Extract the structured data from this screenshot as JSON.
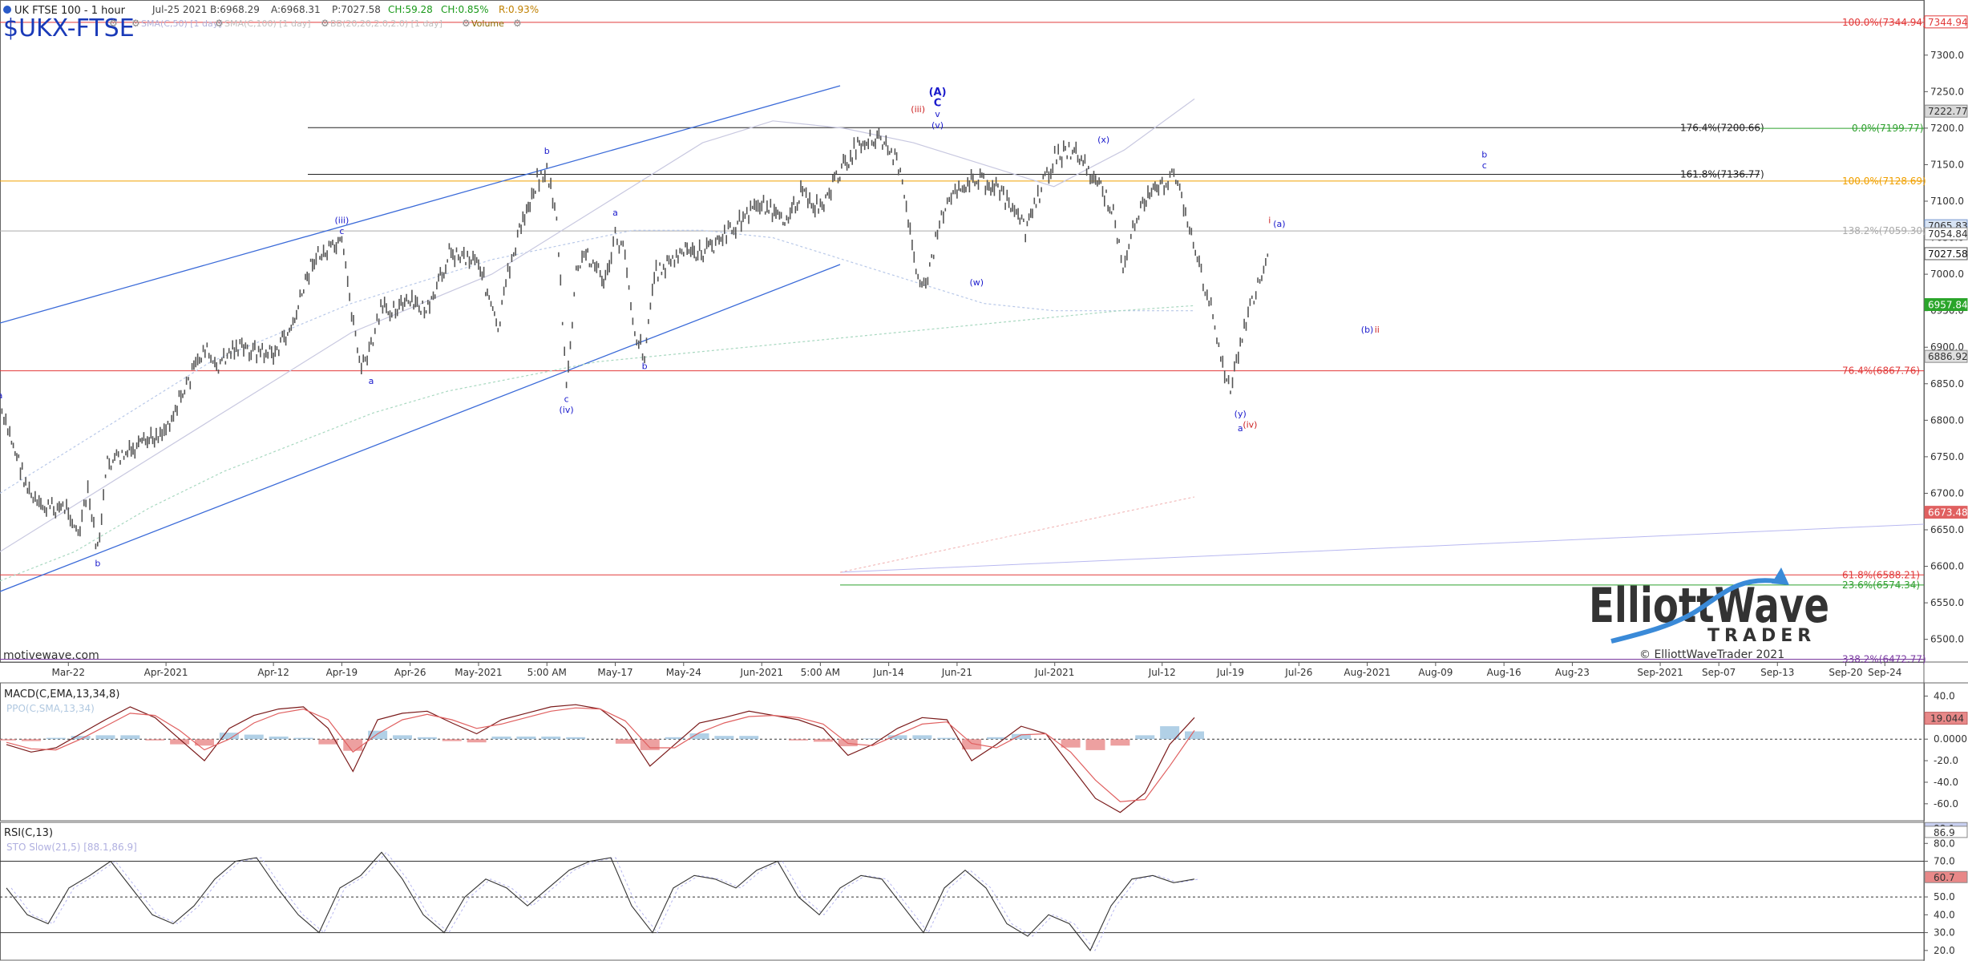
{
  "header": {
    "symbol_line": "UK FTSE 100 - 1 hour",
    "date": "Jul-25 2021",
    "bid": "B:6968.29",
    "ask": "A:6968.31",
    "price": "P:7027.58",
    "change": "CH:59.28",
    "change_pct": "CH:0.85%",
    "range": "R:0.93%",
    "ticker": "$UKX-FTSE",
    "study_sma50": "SMA(C,50) [1 day]",
    "study_sma100": "SMA(C,100) [1 day]",
    "study_bb": "BB(20,20,2.0,2.0) [1 day]",
    "study_volume": "Volume",
    "watermark": "motivewave.com"
  },
  "colors": {
    "price_bars": "#555555",
    "wave_blue": "#1a1acc",
    "wave_red": "#cc2222",
    "fib_red": "#e23a3a",
    "fib_green": "#2ea02e",
    "fib_orange": "#f0a000",
    "fib_black": "#222222",
    "fib_purple": "#7a3aa0",
    "trend_blue": "#3a6ad8",
    "macd": "#7a1a1a",
    "signal": "#e06060",
    "rsi": "#333333",
    "logo_blue": "#3a8ad8"
  },
  "chart_data": [
    {
      "type": "line",
      "title": "UK FTSE 100 - 1 hour",
      "ylim": [
        6470,
        7370
      ],
      "y_ticks": [
        6500,
        6550,
        6600,
        6650,
        6700,
        6750,
        6800,
        6850,
        6900,
        6950,
        7000,
        7050,
        7100,
        7150,
        7200,
        7250,
        7300
      ],
      "x_ticks": [
        "Mar-22",
        "Apr-2021",
        "Apr-12",
        "Apr-19",
        "Apr-26",
        "May-2021",
        "5:00 AM",
        "May-17",
        "May-24",
        "Jun-2021",
        "5:00 AM",
        "Jun-14",
        "Jun-21",
        "Jul-2021",
        "Jul-12",
        "Jul-19",
        "Jul-26",
        "Aug-2021",
        "Aug-09",
        "Aug-16",
        "Aug-23",
        "Sep-2021",
        "Sep-07",
        "Sep-13",
        "Sep-20",
        "Sep-24"
      ],
      "x_dates": [
        "2021-03-22",
        "2021-04-01",
        "2021-04-12",
        "2021-04-19",
        "2021-04-26",
        "2021-05-03",
        "2021-05-10",
        "2021-05-17",
        "2021-05-24",
        "2021-06-01",
        "2021-06-07",
        "2021-06-14",
        "2021-06-21",
        "2021-07-01",
        "2021-07-12",
        "2021-07-19",
        "2021-07-26",
        "2021-08-02",
        "2021-08-09",
        "2021-08-16",
        "2021-08-23",
        "2021-09-01",
        "2021-09-07",
        "2021-09-13",
        "2021-09-20",
        "2021-09-24"
      ],
      "series": [
        {
          "dates": [
            "2021-03-15",
            "2021-03-16",
            "2021-03-18",
            "2021-03-19",
            "2021-03-22",
            "2021-03-23",
            "2021-03-24",
            "2021-03-25",
            "2021-03-26",
            "2021-03-29",
            "2021-03-31",
            "2021-04-01",
            "2021-04-05",
            "2021-04-06",
            "2021-04-08",
            "2021-04-12",
            "2021-04-14",
            "2021-04-16",
            "2021-04-19",
            "2021-04-20",
            "2021-04-21",
            "2021-04-22",
            "2021-04-23",
            "2021-04-26",
            "2021-04-28",
            "2021-04-30",
            "2021-05-03",
            "2021-05-05",
            "2021-05-06",
            "2021-05-07",
            "2021-05-09",
            "2021-05-10",
            "2021-05-11",
            "2021-05-12",
            "2021-05-13",
            "2021-05-14",
            "2021-05-16",
            "2021-05-17",
            "2021-05-18",
            "2021-05-19",
            "2021-05-20",
            "2021-05-21",
            "2021-05-24",
            "2021-05-26",
            "2021-05-28",
            "2021-06-01",
            "2021-06-03",
            "2021-06-05",
            "2021-06-07",
            "2021-06-09",
            "2021-06-11",
            "2021-06-13",
            "2021-06-15",
            "2021-06-16",
            "2021-06-17",
            "2021-06-18",
            "2021-06-19",
            "2021-06-20",
            "2021-06-21",
            "2021-06-23",
            "2021-06-25",
            "2021-06-28",
            "2021-06-30",
            "2021-07-01",
            "2021-07-03",
            "2021-07-05",
            "2021-07-07",
            "2021-07-08",
            "2021-07-09",
            "2021-07-10",
            "2021-07-12",
            "2021-07-13",
            "2021-07-14",
            "2021-07-15",
            "2021-07-16",
            "2021-07-17",
            "2021-07-18",
            "2021-07-19",
            "2021-07-20",
            "2021-07-21",
            "2021-07-22",
            "2021-07-23"
          ],
          "values": [
            6810,
            6780,
            6700,
            6680,
            6680,
            6640,
            6700,
            6620,
            6740,
            6760,
            6780,
            6790,
            6900,
            6870,
            6900,
            6890,
            6930,
            7020,
            7040,
            6950,
            6870,
            6900,
            6950,
            6960,
            6950,
            7030,
            7020,
            6920,
            7000,
            7050,
            7130,
            7140,
            7080,
            6840,
            7000,
            7030,
            6990,
            7050,
            7030,
            6920,
            6890,
            7000,
            7030,
            7030,
            7050,
            7100,
            7070,
            7110,
            7090,
            7140,
            7180,
            7190,
            7150,
            7070,
            7000,
            6990,
            7060,
            7100,
            7120,
            7130,
            7120,
            7060,
            7130,
            7160,
            7170,
            7130,
            7090,
            7000,
            7060,
            7100,
            7120,
            7140,
            7110,
            7050,
            7000,
            6960,
            6880,
            6840,
            6900,
            6960,
            6990,
            7027.58
          ]
        },
        {
          "name": "SMA(C,50) [1 day]",
          "values": [
            6700,
            6760,
            6820,
            6880,
            6920,
            6960,
            6990,
            7020,
            7040,
            7060,
            7060,
            7050,
            7020,
            6990,
            6960,
            6950,
            6950,
            6950
          ]
        },
        {
          "name": "SMA(C,100) [1 day]",
          "values": [
            6580,
            6620,
            6680,
            6730,
            6770,
            6810,
            6840,
            6860,
            6880,
            6890,
            6900,
            6910,
            6920,
            6930,
            6940,
            6950,
            6957
          ]
        },
        {
          "name": "BB(20,20,2.0,2.0) [1 day]",
          "values": [
            6620,
            6680,
            6740,
            6800,
            6860,
            6920,
            6960,
            7000,
            7060,
            7120,
            7180,
            7210,
            7200,
            7180,
            7150,
            7120,
            7170,
            7240
          ]
        }
      ],
      "price_labels": [
        "7344.94",
        "7222.77",
        "7065.83",
        "7054.84",
        "7027.58",
        "6957.84",
        "6886.92",
        "6673.48"
      ],
      "fib_levels": [
        {
          "label": "100.0%(7344.94)",
          "value": 7344.94
        },
        {
          "label": "176.4%(7200.66)",
          "value": 7200.66
        },
        {
          "label": "0.0%(7199.77)",
          "value": 7199.77
        },
        {
          "label": "161.8%(7136.77)",
          "value": 7136.77
        },
        {
          "label": "100.0%(7128.69)",
          "value": 7128.69
        },
        {
          "label": "138.2%(7059.30)",
          "value": 7059.3
        },
        {
          "label": "76.4%(6867.76)",
          "value": 6867.76
        },
        {
          "label": "61.8%(6588.21)",
          "value": 6588.21
        },
        {
          "label": "23.6%(6574.34)",
          "value": 6574.34
        },
        {
          "label": "338.2%(6472.77)",
          "value": 6472.77
        }
      ],
      "wave_labels": [
        {
          "text": "a",
          "date": "2021-03-15",
          "value": 6830
        },
        {
          "text": "b",
          "date": "2021-03-25",
          "value": 6600
        },
        {
          "text": "(iii)",
          "date": "2021-04-19",
          "value": 7070
        },
        {
          "text": "c",
          "date": "2021-04-19",
          "value": 7055
        },
        {
          "text": "a",
          "date": "2021-04-22",
          "value": 6850
        },
        {
          "text": "b",
          "date": "2021-05-10",
          "value": 7165
        },
        {
          "text": "c",
          "date": "2021-05-12",
          "value": 6825
        },
        {
          "text": "(iv)",
          "date": "2021-05-12",
          "value": 6810
        },
        {
          "text": "a",
          "date": "2021-05-17",
          "value": 7080
        },
        {
          "text": "b",
          "date": "2021-05-20",
          "value": 6870
        },
        {
          "text": "(A)",
          "date": "2021-06-19",
          "value": 7245
        },
        {
          "text": "C",
          "date": "2021-06-19",
          "value": 7230
        },
        {
          "text": "(iii)",
          "date": "2021-06-17",
          "value": 7222
        },
        {
          "text": "v",
          "date": "2021-06-19",
          "value": 7215
        },
        {
          "text": "(v)",
          "date": "2021-06-19",
          "value": 7200
        },
        {
          "text": "(w)",
          "date": "2021-06-23",
          "value": 6985
        },
        {
          "text": "(x)",
          "date": "2021-07-06",
          "value": 7180
        },
        {
          "text": "(y)",
          "date": "2021-07-20",
          "value": 6805
        },
        {
          "text": "a",
          "date": "2021-07-20",
          "value": 6785
        },
        {
          "text": "(iv)",
          "date": "2021-07-21",
          "value": 6790
        },
        {
          "text": "i",
          "date": "2021-07-23",
          "value": 7070
        },
        {
          "text": "(a)",
          "date": "2021-07-24",
          "value": 7065
        },
        {
          "text": "(b)",
          "date": "2021-08-02",
          "value": 6920
        },
        {
          "text": "ii",
          "date": "2021-08-03",
          "value": 6920
        },
        {
          "text": "b",
          "date": "2021-08-14",
          "value": 7160
        },
        {
          "text": "c",
          "date": "2021-08-14",
          "value": 7145
        }
      ]
    },
    {
      "type": "line",
      "title": "MACD(C,EMA,13,34,8)",
      "subtitle": "PPO(C,SMA,13,34)",
      "ylim": [
        -75,
        50
      ],
      "y_ticks": [
        40.0,
        20.0,
        0.0,
        -20.0,
        -40.0,
        -60.0
      ],
      "y_tick_labels": [
        "40.0",
        "20.0",
        "0.0000",
        "-20.0",
        "-40.0",
        "-60.0"
      ],
      "value_label": "19.044",
      "series": [
        {
          "name": "MACD",
          "values": [
            -5,
            -12,
            -8,
            5,
            18,
            30,
            20,
            0,
            -20,
            10,
            22,
            28,
            30,
            10,
            -30,
            18,
            24,
            26,
            15,
            5,
            18,
            24,
            30,
            32,
            28,
            10,
            -25,
            -5,
            15,
            20,
            26,
            22,
            18,
            10,
            -15,
            -5,
            10,
            20,
            18,
            -20,
            -5,
            12,
            5,
            -25,
            -55,
            -68,
            -50,
            -5,
            20
          ]
        },
        {
          "name": "Signal",
          "values": [
            -3,
            -9,
            -10,
            0,
            12,
            24,
            22,
            8,
            -10,
            0,
            15,
            24,
            28,
            18,
            -12,
            5,
            18,
            23,
            18,
            10,
            14,
            20,
            26,
            29,
            28,
            17,
            -8,
            -8,
            6,
            15,
            21,
            22,
            20,
            14,
            -4,
            -6,
            4,
            14,
            16,
            -4,
            -8,
            4,
            5,
            -12,
            -38,
            -58,
            -56,
            -25,
            8
          ]
        }
      ]
    },
    {
      "type": "line",
      "title": "RSI(C,13)",
      "subtitle": "STO Slow(21,5) [88.1,86.9]",
      "ylim": [
        15,
        90
      ],
      "y_ticks": [
        80.0,
        70.0,
        60.0,
        50.0,
        40.0,
        30.0,
        20.0
      ],
      "value_labels": [
        "88.1",
        "86.9",
        "60.7"
      ],
      "series": [
        {
          "name": "RSI",
          "values": [
            55,
            40,
            35,
            55,
            62,
            70,
            55,
            40,
            35,
            45,
            60,
            70,
            72,
            55,
            40,
            30,
            55,
            62,
            75,
            60,
            40,
            30,
            50,
            60,
            55,
            45,
            55,
            65,
            70,
            72,
            45,
            30,
            55,
            62,
            60,
            55,
            65,
            70,
            50,
            40,
            55,
            62,
            60,
            45,
            30,
            55,
            65,
            55,
            35,
            28,
            40,
            35,
            20,
            45,
            60,
            62,
            58,
            60
          ]
        }
      ]
    }
  ],
  "logo": {
    "line1": "ElliottWave",
    "line2": "TRADER",
    "copyright": "© ElliottWaveTrader 2021"
  }
}
